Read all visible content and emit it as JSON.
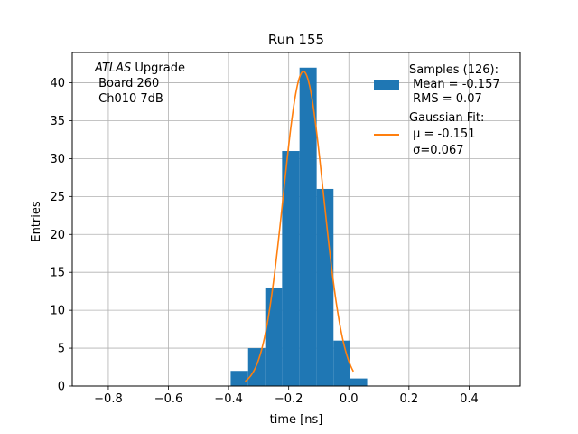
{
  "chart_data": {
    "type": "histogram",
    "title": "Run 155",
    "xlabel": "time [ns]",
    "ylabel": "Entries",
    "xlim": [
      -0.92,
      0.57
    ],
    "ylim": [
      0,
      44
    ],
    "xticks": [
      -0.8,
      -0.6,
      -0.4,
      -0.2,
      0.0,
      0.2,
      0.4
    ],
    "xtick_labels": [
      "−0.8",
      "−0.6",
      "−0.4",
      "−0.2",
      "0.0",
      "0.2",
      "0.4"
    ],
    "yticks": [
      0,
      5,
      10,
      15,
      20,
      25,
      30,
      35,
      40
    ],
    "yticks_labels": [
      "0",
      "5",
      "10",
      "15",
      "20",
      "25",
      "30",
      "35",
      "40"
    ],
    "grid": true,
    "bar_color": "#1f77b4",
    "fit_color": "#ff7f0e",
    "bins": [
      {
        "x0": -0.393,
        "x1": -0.335,
        "count": 2
      },
      {
        "x0": -0.335,
        "x1": -0.278,
        "count": 5
      },
      {
        "x0": -0.278,
        "x1": -0.222,
        "count": 13
      },
      {
        "x0": -0.222,
        "x1": -0.164,
        "count": 31
      },
      {
        "x0": -0.164,
        "x1": -0.107,
        "count": 42
      },
      {
        "x0": -0.107,
        "x1": -0.051,
        "count": 26
      },
      {
        "x0": -0.051,
        "x1": 0.005,
        "count": 6
      },
      {
        "x0": 0.005,
        "x1": 0.061,
        "count": 1
      }
    ],
    "fit": {
      "mu": -0.151,
      "sigma": 0.067,
      "amplitude": 41.5,
      "x_range": [
        -0.345,
        0.015
      ]
    },
    "legend": {
      "placement": "top-right",
      "entries": [
        {
          "kind": "bar",
          "lines": [
            "Samples (126):",
            " Mean = -0.157",
            " RMS = 0.07"
          ]
        },
        {
          "kind": "line",
          "lines": [
            "Gaussian Fit:",
            " μ = -0.151",
            " σ=0.067"
          ]
        }
      ]
    },
    "annotation": {
      "placement": "top-left",
      "italic_word": "ATLAS",
      "line1_rest": " Upgrade",
      "line2": " Board 260",
      "line3": " Ch010 7dB"
    }
  }
}
